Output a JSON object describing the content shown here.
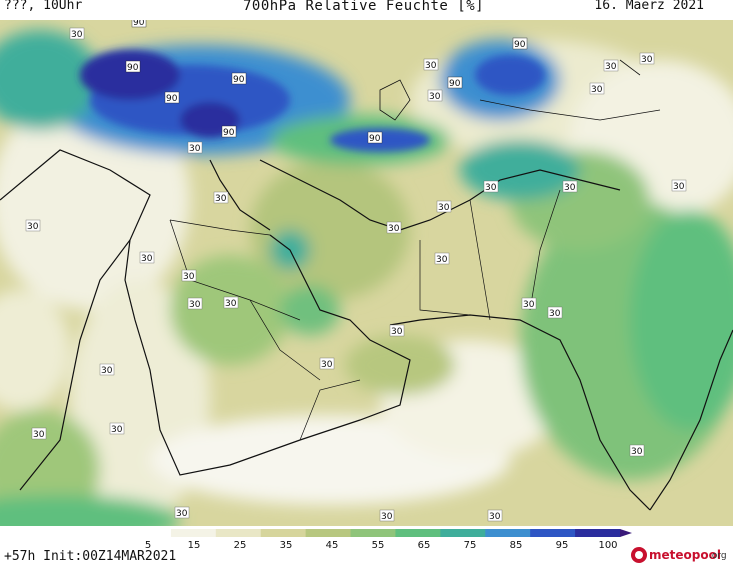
{
  "header": {
    "left": "???, 10Uhr",
    "title": "700hPa Relative Feuchte [%]",
    "right": "16. Maerz 2021"
  },
  "legend": {
    "ticks": [
      "5",
      "15",
      "25",
      "35",
      "45",
      "55",
      "65",
      "75",
      "85",
      "95",
      "100"
    ],
    "colors": [
      "#ffffff",
      "#f4f3e6",
      "#e9e7c6",
      "#d6d59c",
      "#b7c77f",
      "#8fc47a",
      "#5fbf7e",
      "#3fae9b",
      "#3d8fd0",
      "#2e56c4",
      "#2b2d9e",
      "#3a1a7a"
    ]
  },
  "footer": {
    "init": "+57h Init:00Z14MAR2021",
    "logo": "meteopool",
    "logo_tld": ".org"
  },
  "map_labels": {
    "values": [
      "30",
      "90"
    ]
  }
}
